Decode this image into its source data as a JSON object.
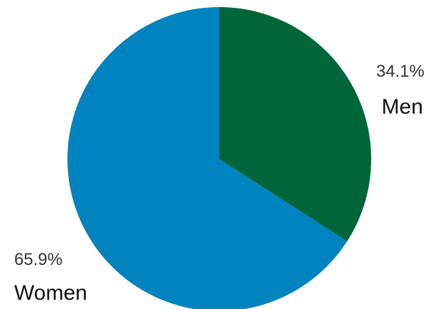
{
  "chart_data": {
    "type": "pie",
    "start_angle_deg": 0,
    "direction": "clockwise",
    "slices": [
      {
        "label": "Men",
        "value": 34.1,
        "value_label": "34.1%",
        "color": "#00663a"
      },
      {
        "label": "Women",
        "value": 65.9,
        "value_label": "65.9%",
        "color": "#0083be"
      }
    ],
    "legend": "none"
  }
}
